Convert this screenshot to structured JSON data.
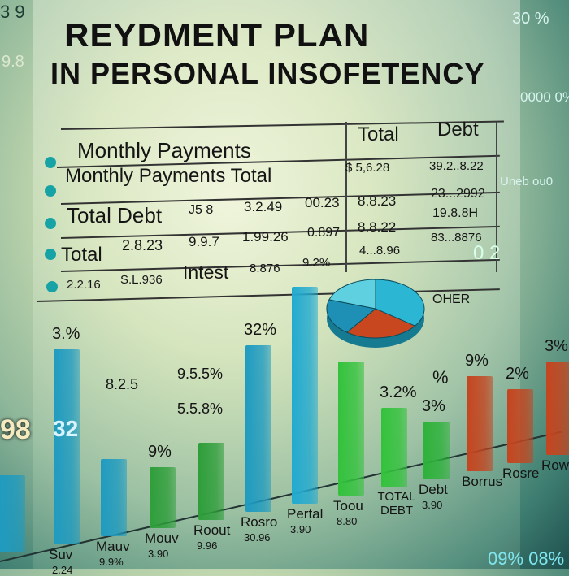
{
  "title_line1": "REYDMENT PLAN",
  "title_line2": "IN PERSONAL INSOFETENCY",
  "table": {
    "headers": [
      "Total",
      "Debt"
    ],
    "rows": [
      {
        "label": "Monthly  Payments",
        "cells": [
          "",
          "",
          "",
          "",
          ""
        ]
      },
      {
        "label": "Monthly Payments  Total",
        "cells": [
          "",
          "",
          "",
          "$ 5,6.28",
          "39.2..8.22"
        ]
      },
      {
        "label": "Total Debt",
        "cells": [
          "J5 8",
          "3.2.49",
          "00.23",
          "8.8.23",
          "23...2992"
        ]
      },
      {
        "label": "Total",
        "cells": [
          "2.8.23",
          "9.9.7",
          "1.99.26",
          "0.897",
          "8.8.22",
          "19.8.8H"
        ]
      },
      {
        "label": "",
        "cells": [
          "2.2.16",
          "S.L.936",
          "Intest",
          "8.876",
          "9.2%",
          "4...8.96",
          "83...8876"
        ]
      }
    ]
  },
  "side_text": [
    "3 9",
    "30 %",
    "9.8",
    "0000 0%",
    "Uneb ou0",
    "0 2",
    "98",
    "09% 08%"
  ],
  "chart_data": {
    "type": "bar",
    "title": "",
    "xlabel": "",
    "ylabel": "",
    "categories": [
      "",
      "Suv",
      "Mauv",
      "Mouv",
      "Roout",
      "Rosro",
      "Pertal",
      "Toou",
      "TOTAL DEBT",
      "Debt",
      "Borrus",
      "Rosre",
      "Rowe"
    ],
    "values": [
      95,
      240,
      95,
      75,
      95,
      205,
      267,
      165,
      98,
      71,
      117,
      91,
      115
    ],
    "colors": [
      "#1f9bc0",
      "#1f9bc0",
      "#1f9bc0",
      "#2e9e3a",
      "#2e9e3a",
      "#1f9bc0",
      "#22aad0",
      "#33c23c",
      "#33c23c",
      "#2eb23a",
      "#c5451f",
      "#c5451f",
      "#c5451f"
    ],
    "data_labels": [
      "",
      "3.%",
      "",
      "9%",
      "",
      "32%",
      "",
      "",
      "3.2%",
      "3%",
      "9%",
      "2%",
      "3%"
    ],
    "sub_labels": [
      "",
      "2.24",
      "9.9%",
      "3.90",
      "9.96",
      "30.96",
      "3.90",
      "8.80",
      "",
      "3.90",
      "",
      "",
      ""
    ],
    "annotations": [
      "9.5.5%",
      "5.5.8%",
      "8.2.5",
      "98",
      "32",
      "%"
    ],
    "pie": {
      "legend": "OHER",
      "slices": [
        {
          "value": 35,
          "color": "#2bb7d4"
        },
        {
          "value": 25,
          "color": "#c8471f"
        },
        {
          "value": 20,
          "color": "#1e8fb5"
        },
        {
          "value": 20,
          "color": "#5fd0e0"
        }
      ]
    }
  }
}
